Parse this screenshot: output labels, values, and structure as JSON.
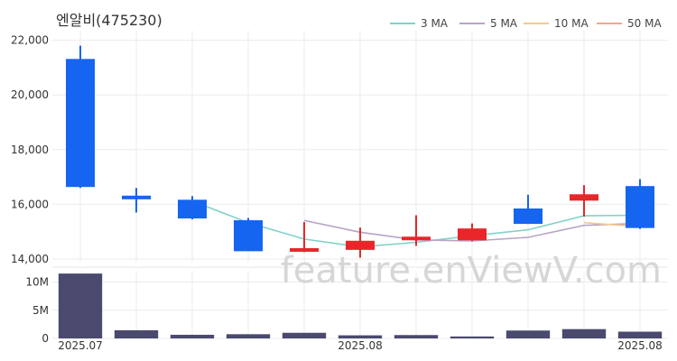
{
  "chart_data": {
    "type": "candlestick",
    "title": "엔알비(475230)",
    "watermark": "feature.enViewV.com",
    "legend": [
      {
        "name": "3 MA",
        "color": "#7fd3c8"
      },
      {
        "name": "5 MA",
        "color": "#b9a3c6"
      },
      {
        "name": "10 MA",
        "color": "#f5c98a"
      },
      {
        "name": "50 MA",
        "color": "#f4a58e"
      }
    ],
    "price_axis": {
      "ylim": [
        13900,
        22350
      ],
      "ticks": [
        14000,
        16000,
        18000,
        20000,
        22000
      ],
      "tick_labels": [
        "14,000",
        "16,000",
        "18,000",
        "20,000",
        "22,000"
      ]
    },
    "volume_axis": {
      "ylim": [
        0,
        12000000
      ],
      "ticks": [
        0,
        5000000,
        10000000
      ],
      "tick_labels": [
        "0",
        "5M",
        "10M"
      ]
    },
    "x_tick_labels": [
      {
        "index": 0,
        "label": "2025.07"
      },
      {
        "index": 5,
        "label": "2025.08"
      },
      {
        "index": 10,
        "label": "2025.08"
      }
    ],
    "colors": {
      "up": "#e8262a",
      "down": "#1565f0",
      "volume": "#4a4a6e",
      "grid": "#ebebeb"
    },
    "candles": [
      {
        "open": 21300,
        "high": 21800,
        "low": 16600,
        "close": 16650
      },
      {
        "open": 16300,
        "high": 16600,
        "low": 15700,
        "close": 16200
      },
      {
        "open": 16150,
        "high": 16300,
        "low": 15450,
        "close": 15500
      },
      {
        "open": 15400,
        "high": 15500,
        "low": 14300,
        "close": 14300
      },
      {
        "open": 14300,
        "high": 15350,
        "low": 14250,
        "close": 14380
      },
      {
        "open": 14350,
        "high": 15150,
        "low": 14050,
        "close": 14650
      },
      {
        "open": 14720,
        "high": 15600,
        "low": 14480,
        "close": 14800
      },
      {
        "open": 14700,
        "high": 15300,
        "low": 14650,
        "close": 15100
      },
      {
        "open": 15830,
        "high": 16350,
        "low": 15280,
        "close": 15300
      },
      {
        "open": 16150,
        "high": 16700,
        "low": 15550,
        "close": 16350
      },
      {
        "open": 16650,
        "high": 16920,
        "low": 15100,
        "close": 15150
      }
    ],
    "volume": [
      11500000,
      1450000,
      650000,
      750000,
      1000000,
      550000,
      600000,
      350000,
      1400000,
      1650000,
      1200000
    ],
    "ma": {
      "3 MA": [
        null,
        null,
        16120,
        15330,
        14730,
        14440,
        14610,
        14850,
        15070,
        15580,
        15600
      ],
      "5 MA": [
        null,
        null,
        null,
        null,
        15410,
        14980,
        14700,
        14660,
        14790,
        15230,
        15300
      ],
      "10 MA": [
        null,
        null,
        null,
        null,
        null,
        null,
        null,
        null,
        null,
        15330,
        15180
      ]
    }
  }
}
